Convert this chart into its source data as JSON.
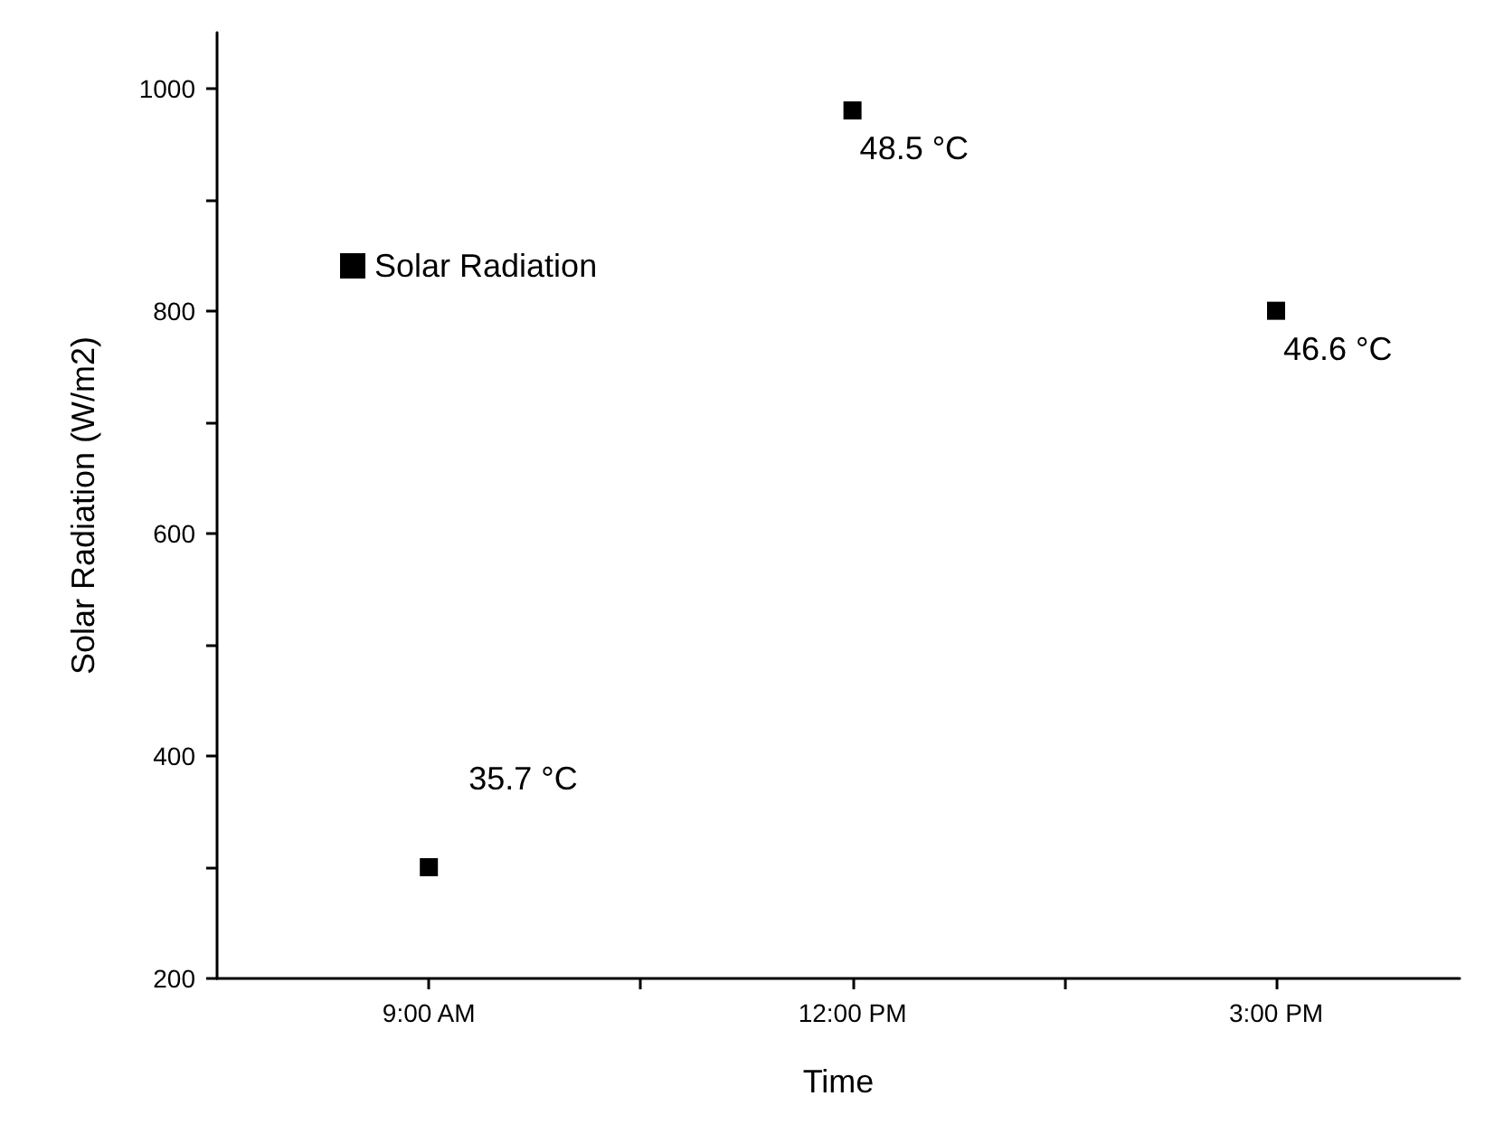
{
  "chart_data": {
    "type": "scatter",
    "xlabel": "Time",
    "ylabel": "Solar Radiation (W/m2)",
    "x": [
      9,
      12,
      15
    ],
    "series": [
      {
        "name": "Solar Radiation",
        "color": "#000000",
        "values": [
          300,
          980,
          800
        ]
      }
    ],
    "xlim": [
      7.5,
      16.3
    ],
    "xticks": [
      {
        "value": 9,
        "label": "9:00 AM"
      },
      {
        "value": 10.5,
        "label": null
      },
      {
        "value": 12,
        "label": "12:00 PM"
      },
      {
        "value": 13.5,
        "label": null
      },
      {
        "value": 15,
        "label": "3:00 PM"
      }
    ],
    "ylim": [
      200,
      1050
    ],
    "yticks": [
      200,
      {
        "value": 300,
        "label": null
      },
      400,
      {
        "value": 500,
        "label": null
      },
      600,
      {
        "value": 700,
        "label": null
      },
      800,
      {
        "value": 900,
        "label": null
      },
      1000
    ],
    "annotations": [
      {
        "text": "35.7 °C",
        "x": 9,
        "y": 300
      },
      {
        "text": "48.5 °C",
        "x": 12,
        "y": 980
      },
      {
        "text": "46.6 °C",
        "x": 15,
        "y": 800
      }
    ],
    "legend": "top left",
    "grid": false,
    "marker": "square"
  }
}
